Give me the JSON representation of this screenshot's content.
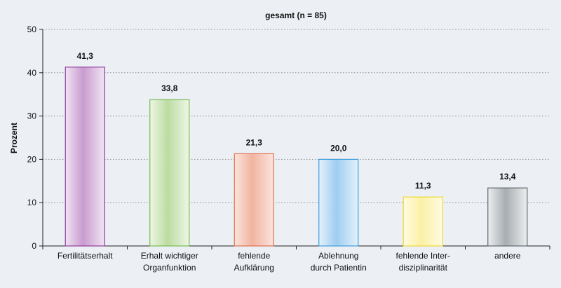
{
  "chart_data": {
    "type": "bar",
    "title": "gesamt (n = 85)",
    "xlabel": "",
    "ylabel": "Prozent",
    "ylim": [
      0,
      50
    ],
    "yticks": [
      0,
      10,
      20,
      30,
      40,
      50
    ],
    "grid": "horizontal dotted",
    "categories": [
      [
        "Fertilitätserhalt"
      ],
      [
        "Erhalt wichtiger",
        "Organfunktion"
      ],
      [
        "fehlende",
        "Aufklärung"
      ],
      [
        "Ablehnung",
        "durch Patientin"
      ],
      [
        "fehlende Inter-",
        "disziplinarität"
      ],
      [
        "andere"
      ]
    ],
    "values": [
      41.3,
      33.8,
      21.3,
      20.0,
      11.3,
      13.4
    ],
    "value_labels": [
      "41,3",
      "33,8",
      "21,3",
      "20,0",
      "11,3",
      "13,4"
    ],
    "bar_colors": [
      {
        "light": "#f1e4f3",
        "dark": "#c99bd0",
        "stroke": "#8e3d99"
      },
      {
        "light": "#eef6e6",
        "dark": "#bcdca2",
        "stroke": "#7aba52"
      },
      {
        "light": "#fbe5de",
        "dark": "#f1b49f",
        "stroke": "#e0714f"
      },
      {
        "light": "#e3f1fb",
        "dark": "#9fcdf0",
        "stroke": "#3f9ee0"
      },
      {
        "light": "#fffbe0",
        "dark": "#fbf0a6",
        "stroke": "#f0d83a"
      },
      {
        "light": "#eceeef",
        "dark": "#a8adb1",
        "stroke": "#5f666c"
      }
    ]
  }
}
